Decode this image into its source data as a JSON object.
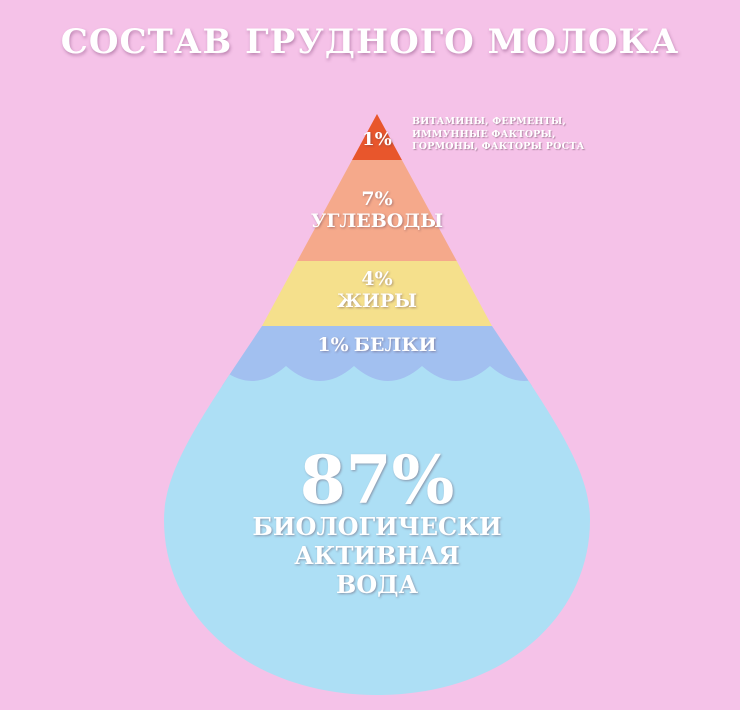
{
  "title": "СОСТАВ ГРУДНОГО МОЛОКА",
  "layers": [
    {
      "key": "other",
      "percent": "1%",
      "name": "",
      "color": "#e8562c"
    },
    {
      "key": "carbs",
      "percent": "7%",
      "name": "УГЛЕВОДЫ",
      "color": "#f5a98b"
    },
    {
      "key": "fats",
      "percent": "4%",
      "name": "ЖИРЫ",
      "color": "#f5e08c"
    },
    {
      "key": "proteins",
      "percent": "1%",
      "name": "БЕЛКИ",
      "color": "#a2c0f0"
    },
    {
      "key": "water",
      "percent": "87%",
      "name_lines": [
        "БИОЛОГИЧЕСКИ",
        "АКТИВНАЯ",
        "ВОДА"
      ],
      "color": "#addff5"
    }
  ],
  "note_lines": [
    "ВИТАМИНЫ, ФЕРМЕНТЫ,",
    "ИММУННЫЕ ФАКТОРЫ,",
    "ГОРМОНЫ, ФАКТОРЫ РОСТА"
  ],
  "colors": {
    "background": "#f5c2e8",
    "text": "#ffffff"
  }
}
